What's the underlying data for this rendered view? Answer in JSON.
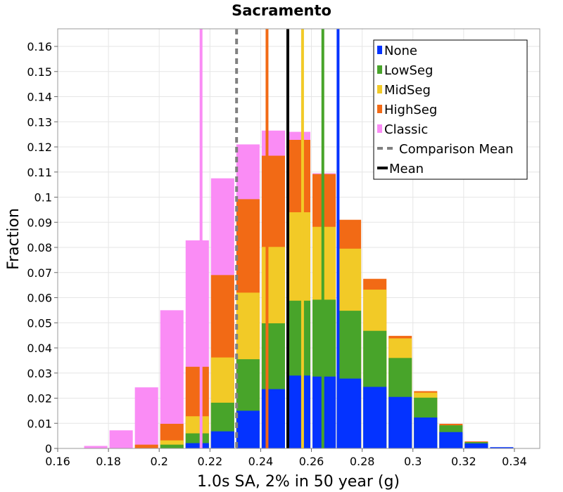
{
  "chart_data": {
    "type": "bar",
    "title": "Sacramento",
    "xlabel": "1.0s SA, 2% in 50 year (g)",
    "ylabel": "Fraction",
    "xlim": [
      0.16,
      0.35
    ],
    "ylim": [
      0,
      0.167
    ],
    "x_ticks": [
      "0.16",
      "0.18",
      "0.2",
      "0.22",
      "0.24",
      "0.26",
      "0.28",
      "0.3",
      "0.32",
      "0.34"
    ],
    "y_ticks": [
      "0",
      "0.01",
      "0.02",
      "0.03",
      "0.04",
      "0.05",
      "0.06",
      "0.07",
      "0.08",
      "0.09",
      "0.1",
      "0.11",
      "0.12",
      "0.13",
      "0.14",
      "0.15",
      "0.16"
    ],
    "grid": true,
    "legend_position": "top-right",
    "bin_width": 0.01,
    "categories": [
      0.175,
      0.185,
      0.195,
      0.205,
      0.215,
      0.225,
      0.235,
      0.245,
      0.255,
      0.265,
      0.275,
      0.285,
      0.295,
      0.305,
      0.315,
      0.325,
      0.335,
      0.345
    ],
    "series": [
      {
        "name": "Classic",
        "color": "#fa8cf5",
        "values": [
          0.001,
          0.0072,
          0.0243,
          0.055,
          0.0828,
          0.1075,
          0.121,
          0.1265,
          0.126,
          0.1095,
          0,
          0,
          0,
          0,
          0,
          0,
          0,
          0
        ]
      },
      {
        "name": "HighSeg",
        "color": "#f26a15",
        "values": [
          0,
          0,
          0.0015,
          0.0098,
          0.0325,
          0.069,
          0.0992,
          0.1165,
          0.1228,
          0.1092,
          0.091,
          0.0675,
          0.0448,
          0.0228,
          0.0098,
          0.0028,
          0,
          0
        ]
      },
      {
        "name": "MidSeg",
        "color": "#f2ca27",
        "values": [
          0,
          0,
          0,
          0.0032,
          0.0128,
          0.0362,
          0.062,
          0.0802,
          0.094,
          0.0882,
          0.0795,
          0.0632,
          0.0438,
          0.0222,
          0.0092,
          0.0025,
          0,
          0
        ]
      },
      {
        "name": "LowSeg",
        "color": "#48a42a",
        "values": [
          0,
          0,
          0,
          0.0015,
          0.006,
          0.0182,
          0.0355,
          0.0498,
          0.0588,
          0.0592,
          0.0548,
          0.0468,
          0.036,
          0.0202,
          0.0092,
          0.0025,
          0,
          0
        ]
      },
      {
        "name": "None",
        "color": "#0433ff",
        "values": [
          0,
          0,
          0,
          0,
          0.0021,
          0.0068,
          0.015,
          0.0236,
          0.029,
          0.0286,
          0.0278,
          0.0245,
          0.0205,
          0.0123,
          0.0065,
          0.002,
          0.0005,
          0
        ]
      }
    ],
    "stack_order": [
      "None",
      "LowSeg",
      "MidSeg",
      "HighSeg",
      "Classic"
    ],
    "vertical_lines": [
      {
        "series": "Classic",
        "x": 0.2165,
        "color": "#fa8cf5",
        "style": "solid"
      },
      {
        "series": "HighSeg",
        "x": 0.2425,
        "color": "#f26a15",
        "style": "solid"
      },
      {
        "series": "MidSeg",
        "x": 0.2565,
        "color": "#f2ca27",
        "style": "solid"
      },
      {
        "series": "LowSeg",
        "x": 0.2645,
        "color": "#48a42a",
        "style": "solid"
      },
      {
        "series": "None",
        "x": 0.2705,
        "color": "#0433ff",
        "style": "solid"
      },
      {
        "series": "Comparison Mean",
        "x": 0.2305,
        "color": "#808080",
        "style": "dashed"
      },
      {
        "series": "Mean",
        "x": 0.2507,
        "color": "#000000",
        "style": "solid"
      }
    ],
    "legend": [
      {
        "label": "None",
        "color": "#0433ff",
        "marker": "square"
      },
      {
        "label": "LowSeg",
        "color": "#48a42a",
        "marker": "square"
      },
      {
        "label": "MidSeg",
        "color": "#f2ca27",
        "marker": "square"
      },
      {
        "label": "HighSeg",
        "color": "#f26a15",
        "marker": "square"
      },
      {
        "label": "Classic",
        "color": "#fa8cf5",
        "marker": "square"
      },
      {
        "label": "Comparison Mean",
        "color": "#808080",
        "marker": "dashed-line"
      },
      {
        "label": "Mean",
        "color": "#000000",
        "marker": "line"
      }
    ]
  }
}
